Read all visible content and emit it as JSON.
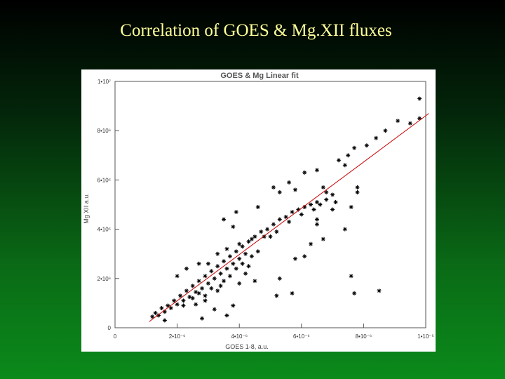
{
  "slide": {
    "title": "Correlation of GOES & Mg.XII fluxes"
  },
  "colors": {
    "background_top": "#000000",
    "background_bottom": "#0b8a1a",
    "title_color": "#ffff99",
    "points": "#000000",
    "fit_line": "#cc0000"
  },
  "chart_data": {
    "type": "scatter",
    "title": "GOES & Mg Linear fit",
    "xlabel": "GOES 1-8, a.u.",
    "ylabel": "Mg XII a.u.",
    "xlim": [
      0,
      1e-05
    ],
    "ylim": [
      0,
      10000000.0
    ],
    "x_ticks": [
      {
        "value": 0,
        "label": "0"
      },
      {
        "value": 2e-06,
        "label": "2•10⁻⁶"
      },
      {
        "value": 4e-06,
        "label": "4•10⁻⁶"
      },
      {
        "value": 6e-06,
        "label": "6•10⁻⁶"
      },
      {
        "value": 8e-06,
        "label": "8•10⁻⁶"
      },
      {
        "value": 1e-05,
        "label": "1•10⁻⁵"
      }
    ],
    "y_ticks": [
      {
        "value": 0,
        "label": "0"
      },
      {
        "value": 2000000.0,
        "label": "2•10⁶"
      },
      {
        "value": 4000000.0,
        "label": "4•10⁶"
      },
      {
        "value": 6000000.0,
        "label": "6•10⁶"
      },
      {
        "value": 8000000.0,
        "label": "8•10⁶"
      },
      {
        "value": 10000000.0,
        "label": "1•10⁷"
      }
    ],
    "marker": "asterisk",
    "grid": false,
    "fit_line": {
      "x": [
        1.1e-06,
        1.01e-05
      ],
      "y": [
        250000,
        8700000
      ]
    },
    "series": [
      {
        "points": [
          [
            9.8e-06,
            9300000.0
          ],
          [
            9.8e-06,
            8500000.0
          ],
          [
            9.5e-06,
            8300000.0
          ],
          [
            9.1e-06,
            8400000.0
          ],
          [
            8.7e-06,
            8000000.0
          ],
          [
            8.4e-06,
            7700000.0
          ],
          [
            8.1e-06,
            7400000.0
          ],
          [
            7.7e-06,
            7300000.0
          ],
          [
            7.5e-06,
            7000000.0
          ],
          [
            7.2e-06,
            6800000.0
          ],
          [
            7.4e-06,
            6600000.0
          ],
          [
            6.5e-06,
            6400000.0
          ],
          [
            6.1e-06,
            6300000.0
          ],
          [
            7.8e-06,
            5700000.0
          ],
          [
            7.8e-06,
            5500000.0
          ],
          [
            7.1e-06,
            5100000.0
          ],
          [
            7.6e-06,
            4900000.0
          ],
          [
            6.7e-06,
            5700000.0
          ],
          [
            5.6e-06,
            5900000.0
          ],
          [
            5.8e-06,
            5600000.0
          ],
          [
            6.8e-06,
            5500000.0
          ],
          [
            7e-06,
            5400000.0
          ],
          [
            7e-06,
            4800000.0
          ],
          [
            5.1e-06,
            5700000.0
          ],
          [
            5.3e-06,
            5500000.0
          ],
          [
            4.6e-06,
            4900000.0
          ],
          [
            3.9e-06,
            4700000.0
          ],
          [
            3.8e-06,
            4100000.0
          ],
          [
            3.5e-06,
            4400000.0
          ],
          [
            7.4e-06,
            4000000.0
          ],
          [
            6.5e-06,
            4400000.0
          ],
          [
            6.5e-06,
            4200000.0
          ],
          [
            6.3e-06,
            3400000.0
          ],
          [
            6.7e-06,
            3600000.0
          ],
          [
            6.1e-06,
            2900000.0
          ],
          [
            5.8e-06,
            2800000.0
          ],
          [
            5e-06,
            3700000.0
          ],
          [
            4.6e-06,
            3100000.0
          ],
          [
            4.4e-06,
            2900000.0
          ],
          [
            4.2e-06,
            2200000.0
          ],
          [
            4e-06,
            1800000.0
          ],
          [
            4.5e-06,
            1900000.0
          ],
          [
            8.5e-06,
            1500000.0
          ],
          [
            7.7e-06,
            1400000.0
          ],
          [
            7.6e-06,
            2100000.0
          ],
          [
            5.7e-06,
            1400000.0
          ],
          [
            5.2e-06,
            1300000.0
          ],
          [
            5.3e-06,
            2000000.0
          ],
          [
            3.2e-06,
            750000.0
          ],
          [
            3.8e-06,
            900000.0
          ],
          [
            3.4e-06,
            1700000.0
          ],
          [
            2.9e-06,
            1100000.0
          ],
          [
            2.6e-06,
            950000.0
          ],
          [
            2.2e-06,
            900000.0
          ],
          [
            2.8e-06,
            380000.0
          ],
          [
            3.6e-06,
            500000.0
          ],
          [
            1.6e-06,
            300000.0
          ],
          [
            2.3e-06,
            2400000.0
          ],
          [
            2e-06,
            2100000.0
          ],
          [
            2.7e-06,
            2600000.0
          ],
          [
            1.2e-06,
            450000.0
          ],
          [
            1.3e-06,
            600000.0
          ],
          [
            1.5e-06,
            800000.0
          ],
          [
            1.7e-06,
            900000.0
          ],
          [
            1.9e-06,
            1100000.0
          ],
          [
            2.1e-06,
            1300000.0
          ],
          [
            2.3e-06,
            1500000.0
          ],
          [
            2.5e-06,
            1700000.0
          ],
          [
            2.7e-06,
            1900000.0
          ],
          [
            2.9e-06,
            2100000.0
          ],
          [
            3.1e-06,
            2300000.0
          ],
          [
            3.3e-06,
            2500000.0
          ],
          [
            3.5e-06,
            2700000.0
          ],
          [
            3.7e-06,
            2900000.0
          ],
          [
            3.9e-06,
            3100000.0
          ],
          [
            4.1e-06,
            3300000.0
          ],
          [
            4.3e-06,
            3500000.0
          ],
          [
            4.5e-06,
            3700000.0
          ],
          [
            4.7e-06,
            3900000.0
          ],
          [
            4.9e-06,
            4000000.0
          ],
          [
            5.1e-06,
            4200000.0
          ],
          [
            5.3e-06,
            4400000.0
          ],
          [
            5.5e-06,
            4500000.0
          ],
          [
            5.7e-06,
            4700000.0
          ],
          [
            5.9e-06,
            4800000.0
          ],
          [
            6.1e-06,
            4900000.0
          ],
          [
            6.3e-06,
            5000000.0
          ],
          [
            6.5e-06,
            5100000.0
          ],
          [
            6.6e-06,
            5000000.0
          ],
          [
            6.8e-06,
            5200000.0
          ],
          [
            1.4e-06,
            500000.0
          ],
          [
            1.6e-06,
            650000.0
          ],
          [
            1.8e-06,
            800000.0
          ],
          [
            2e-06,
            950000.0
          ],
          [
            2.2e-06,
            1100000.0
          ],
          [
            2.4e-06,
            1250000.0
          ],
          [
            2.6e-06,
            1450000.0
          ],
          [
            2.8e-06,
            1600000.0
          ],
          [
            3e-06,
            1800000.0
          ],
          [
            3.2e-06,
            2000000.0
          ],
          [
            3.4e-06,
            2200000.0
          ],
          [
            3.6e-06,
            2400000.0
          ],
          [
            3.8e-06,
            2600000.0
          ],
          [
            4e-06,
            2800000.0
          ],
          [
            4.2e-06,
            3000000.0
          ],
          [
            2.5e-06,
            1200000.0
          ],
          [
            2.7e-06,
            1400000.0
          ],
          [
            2.9e-06,
            1300000.0
          ],
          [
            3.1e-06,
            1600000.0
          ],
          [
            3.3e-06,
            1500000.0
          ],
          [
            3.5e-06,
            1900000.0
          ],
          [
            3.7e-06,
            2100000.0
          ],
          [
            3.9e-06,
            2400000.0
          ],
          [
            4.1e-06,
            2600000.0
          ],
          [
            4.3e-06,
            2500000.0
          ],
          [
            3e-06,
            2600000.0
          ],
          [
            3.3e-06,
            3000000.0
          ],
          [
            3.6e-06,
            3200000.0
          ],
          [
            4e-06,
            3400000.0
          ],
          [
            4.4e-06,
            3600000.0
          ],
          [
            4.8e-06,
            3700000.0
          ],
          [
            5.2e-06,
            3900000.0
          ],
          [
            5.6e-06,
            4300000.0
          ],
          [
            6e-06,
            4600000.0
          ],
          [
            6.4e-06,
            4800000.0
          ]
        ]
      }
    ]
  }
}
